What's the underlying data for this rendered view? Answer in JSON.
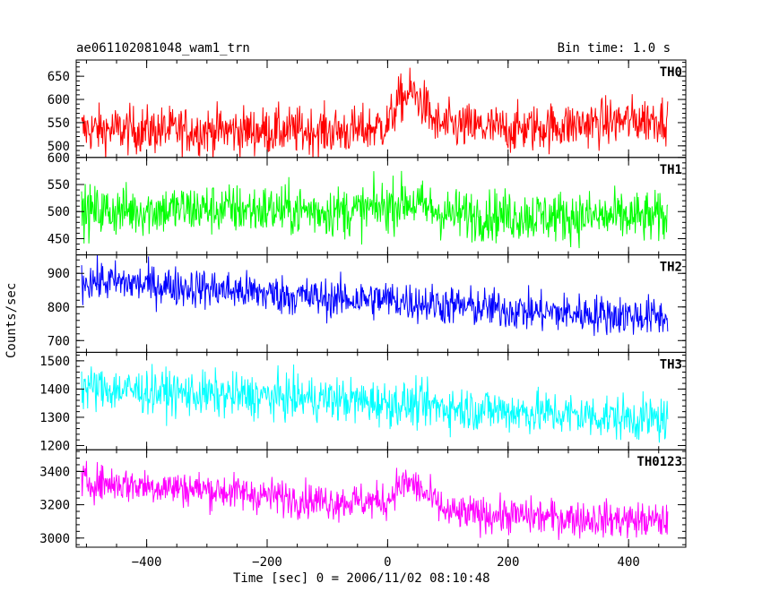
{
  "header": {
    "title": "ae061102081048_wam1_trn",
    "bin_time": "Bin time: 1.0 s"
  },
  "chart_data": {
    "type": "line",
    "xlabel": "Time [sec] 0 = 2006/11/02 08:10:48",
    "ylabel": "Counts/sec",
    "xlim": [
      -517,
      495
    ],
    "xticks": [
      -400,
      -200,
      0,
      200,
      400
    ],
    "x_start": -508,
    "x_end": 465,
    "x_step": 1.0,
    "grid": false,
    "panels": [
      {
        "name": "TH0",
        "color": "#ff0000",
        "ylim": [
          475,
          685
        ],
        "yticks": [
          500,
          550,
          600,
          650
        ],
        "baseline": [
          [
            -508,
            535
          ],
          [
            -300,
            533
          ],
          [
            -50,
            532
          ],
          [
            0,
            545
          ],
          [
            20,
            600
          ],
          [
            40,
            615
          ],
          [
            60,
            590
          ],
          [
            80,
            545
          ],
          [
            200,
            535
          ],
          [
            465,
            560
          ]
        ],
        "noise": 26
      },
      {
        "name": "TH1",
        "color": "#00ff00",
        "ylim": [
          420,
          600
        ],
        "yticks": [
          450,
          500,
          550,
          600
        ],
        "baseline": [
          [
            -508,
            500
          ],
          [
            -300,
            505
          ],
          [
            -50,
            500
          ],
          [
            0,
            510
          ],
          [
            30,
            520
          ],
          [
            60,
            508
          ],
          [
            100,
            495
          ],
          [
            465,
            488
          ]
        ],
        "noise": 24
      },
      {
        "name": "TH2",
        "color": "#0000ff",
        "ylim": [
          665,
          955
        ],
        "yticks": [
          700,
          800,
          900
        ],
        "baseline": [
          [
            -508,
            880
          ],
          [
            -300,
            855
          ],
          [
            -100,
            825
          ],
          [
            0,
            822
          ],
          [
            100,
            805
          ],
          [
            250,
            785
          ],
          [
            465,
            770
          ]
        ],
        "noise": 30
      },
      {
        "name": "TH3",
        "color": "#00ffff",
        "ylim": [
          1185,
          1530
        ],
        "yticks": [
          1200,
          1300,
          1400,
          1500
        ],
        "baseline": [
          [
            -508,
            1405
          ],
          [
            -300,
            1380
          ],
          [
            -100,
            1365
          ],
          [
            100,
            1335
          ],
          [
            300,
            1310
          ],
          [
            465,
            1290
          ]
        ],
        "noise": 40
      },
      {
        "name": "TH0123",
        "color": "#ff00ff",
        "ylim": [
          2945,
          3530
        ],
        "yticks": [
          3000,
          3200,
          3400
        ],
        "baseline": [
          [
            -508,
            3340
          ],
          [
            -300,
            3290
          ],
          [
            -100,
            3220
          ],
          [
            0,
            3220
          ],
          [
            15,
            3310
          ],
          [
            40,
            3330
          ],
          [
            60,
            3270
          ],
          [
            100,
            3150
          ],
          [
            300,
            3120
          ],
          [
            465,
            3100
          ]
        ],
        "noise": 55
      }
    ]
  }
}
